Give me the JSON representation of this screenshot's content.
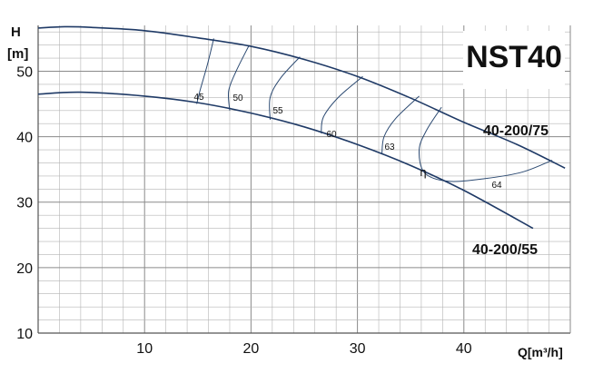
{
  "chart_data": {
    "type": "line",
    "title": "NST40",
    "ylabel_top": "H",
    "ylabel_unit": "[m]",
    "xlabel": "Q[m³/h]",
    "xlim": [
      0,
      50
    ],
    "ylim": [
      10,
      57
    ],
    "x_ticks": [
      10,
      20,
      30,
      40
    ],
    "y_ticks": [
      10,
      20,
      30,
      40,
      50
    ],
    "grid": true,
    "series": [
      {
        "name": "40-200/75",
        "x": [
          0,
          2.5,
          5,
          10,
          15,
          20,
          25,
          30,
          35,
          40,
          45,
          49.5
        ],
        "y": [
          56.6,
          56.8,
          56.7,
          56.2,
          55.1,
          53.8,
          51.8,
          49.2,
          45.9,
          42.2,
          38.8,
          35.2
        ]
      },
      {
        "name": "40-200/55",
        "x": [
          0,
          4,
          10,
          15,
          20,
          25,
          30,
          35,
          40,
          46.5
        ],
        "y": [
          46.5,
          46.8,
          46.2,
          45.2,
          43.6,
          41.5,
          38.8,
          35.6,
          31.8,
          26.0
        ]
      }
    ],
    "efficiency_curves": [
      {
        "label": "45",
        "x": [
          16.5,
          15.9,
          15.2,
          14.9
        ],
        "y": [
          55.0,
          51.0,
          47.0,
          45.0
        ]
      },
      {
        "label": "50",
        "x": [
          19.8,
          18.6,
          17.9,
          18.0
        ],
        "y": [
          53.9,
          50.0,
          47.0,
          44.0
        ]
      },
      {
        "label": "55",
        "x": [
          24.6,
          22.8,
          21.8,
          21.8
        ],
        "y": [
          52.2,
          49.0,
          46.0,
          42.6
        ]
      },
      {
        "label": "60",
        "x": [
          30.5,
          28.2,
          26.8,
          26.6
        ],
        "y": [
          49.2,
          46.0,
          43.0,
          40.5
        ]
      },
      {
        "label": "63",
        "x": [
          35.8,
          33.6,
          32.5,
          32.3
        ],
        "y": [
          46.2,
          42.8,
          40.0,
          37.3
        ]
      },
      {
        "label": "64",
        "x": [
          37.9,
          36.5,
          35.8,
          36.3,
          38.5,
          42.0,
          45.5,
          48.3
        ],
        "y": [
          44.5,
          41.0,
          38.0,
          34.5,
          33.2,
          33.6,
          34.6,
          36.4
        ]
      }
    ],
    "efficiency_symbol": "η"
  }
}
